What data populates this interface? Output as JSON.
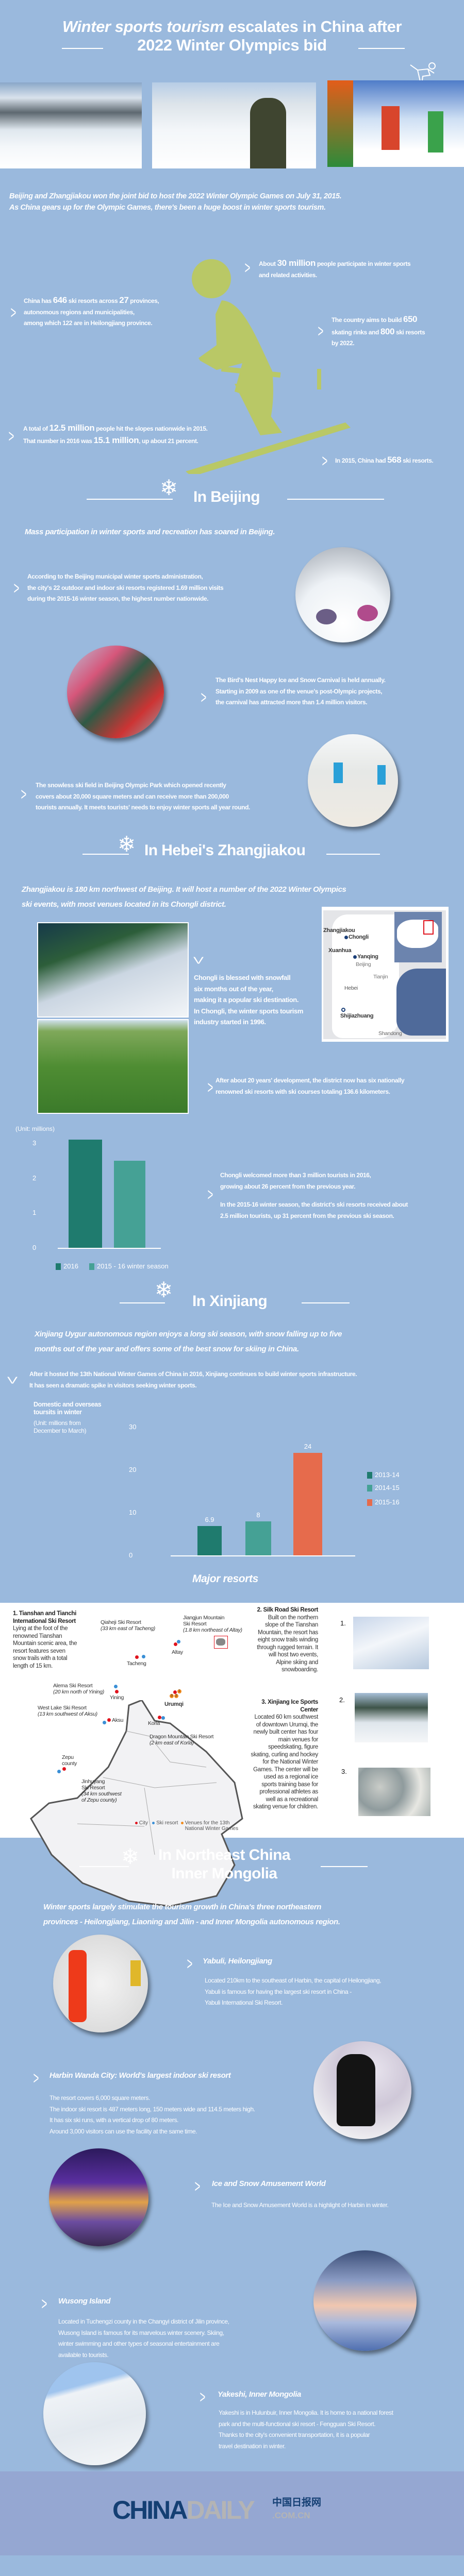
{
  "colors": {
    "background": "#9ab9dd",
    "skier": "#b9c866",
    "footer": "#95a7d2",
    "teal_dark": "#1f7b6e",
    "teal_light": "#45a195",
    "orange": "#e66b4c",
    "city_dot": "#e0141e",
    "resort_dot": "#3a8fd6",
    "venue_dot": "#f08a1c"
  },
  "header": {
    "title_italic": "Winter sports tourism",
    "title_rest": "escalates in China after",
    "title_line2": "2022 Winter Olympics bid",
    "icon": "skier-icon"
  },
  "intro": [
    "Beijing and Zhangjiakou won the joint bid to host the 2022 Winter Olympic Games  on July 31, 2015.",
    "As China gears up for the Olympic Games, there's been a huge boost in winter sports tourism."
  ],
  "stats": [
    {
      "lines": [
        [
          "About ",
          "30 million",
          " people participate in winter sports"
        ],
        [
          "and related activities.",
          "",
          ""
        ]
      ]
    },
    {
      "lines": [
        [
          "China has ",
          "646",
          " ski resorts across "
        ],
        [
          "27",
          " provinces,",
          ""
        ],
        [
          "autonomous regions and municipalities,",
          "",
          ""
        ],
        [
          "among which 122 are in Heilongjiang province.",
          "",
          ""
        ]
      ]
    },
    {
      "lines": [
        [
          "The country aims to build ",
          "650",
          ""
        ],
        [
          "skating rinks and ",
          "800",
          " ski resorts"
        ],
        [
          "by 2022.",
          "",
          ""
        ]
      ]
    },
    {
      "lines": [
        [
          "A total of ",
          "12.5 million",
          " people hit the slopes nationwide in 2015."
        ],
        [
          "That number in 2016 was ",
          "15.1 million",
          ", up about 21 percent."
        ]
      ]
    },
    {
      "lines": [
        [
          "In 2015, China had ",
          "568",
          " ski resorts."
        ]
      ]
    }
  ],
  "beijing": {
    "heading": "In Beijing",
    "lead": "Mass participation in winter sports and recreation has soared in Beijing.",
    "items": [
      [
        "According to the Beijing municipal winter sports administration,",
        "the city's 22 outdoor and indoor ski resorts registered 1.69 million visits",
        "during the 2015-16 winter season, the highest number nationwide."
      ],
      [
        "The Bird's Nest Happy Ice and Snow Carnival is held annually.",
        "Starting in 2009 as one of the venue's post-Olympic projects,",
        "the carnival has attracted more than 1.4 million visitors."
      ],
      [
        "The snowless ski field in Beijing Olympic Park which opened recently",
        "covers about 20,000 square meters and can receive more than 200,000",
        "tourists annually. It meets tourists' needs to enjoy winter sports all year round."
      ]
    ]
  },
  "hebei": {
    "heading": "In Hebei's Zhangjiakou",
    "lead": [
      "Zhangjiakou is 180 km northwest of Beijing. It will host a number of the 2022 Winter Olympics",
      "ski events, with most venues located in its Chongli district."
    ],
    "chongli": [
      "Chongli is blessed with snowfall",
      "six months out of the year,",
      "making it a popular ski destination.",
      "In Chongli, the winter sports tourism",
      "industry started in 1996."
    ],
    "map_labels": {
      "zhangjiakou": "Zhangjiakou",
      "chongli": "Chongli",
      "xuanhua": "Xuanhua",
      "yanqing": "Yanqing",
      "beijing": "Beijing",
      "tianjin": "Tianjin",
      "hebei": "Hebei",
      "shijiazhuang": "Shijiazhuang",
      "shandong": "Shandong"
    },
    "development": [
      "After about 20 years' development, the district now has six nationally",
      "renowned ski resorts with ski courses totaling 136.6 kilometers."
    ],
    "tourists": [
      "Chongli welcomed more than 3 million tourists in 2016,",
      "growing about 26 percent from the previous year.",
      "In the 2015-16 winter season, the district's ski resorts received about",
      "2.5 million tourists, up 31 percent from the previous ski season."
    ]
  },
  "xinjiang": {
    "heading": "In Xinjiang",
    "lead": [
      "Xinjiang Uygur autonomous region enjoys a long ski season, with snow falling up to five",
      "months out of the year and offers some of the best snow for skiing in China."
    ],
    "note": [
      "After it hosted the 13th National Winter Games of China in 2016, Xinjiang continues to build winter sports infrastructure.",
      "It has seen a dramatic spike in visitors seeking winter sports."
    ],
    "resorts_heading": "Major resorts",
    "resorts": [
      {
        "title": "1. Tianshan and Tianchi International Ski Resort",
        "text": "Lying at the foot of the renowned Tianshan Mountain scenic area, the resort features seven snow trails with a total length of 15 km."
      },
      {
        "title": "2. Silk Road Ski Resort",
        "text": "Built on the northern slope of the Tianshan Mountain, the resort has eight snow trails winding through rugged terrain. It will host two events, Alpine skiing and snowboarding."
      },
      {
        "title": "3. Xinjiang Ice Sports Center",
        "text": "Located 60 km southwest of downtown Urumqi, the newly built center has four main venues for speedskating, figure skating,  curling and hockey for the National Winter Games. The center will be used as a regional ice sports training base for professional athletes as well as a recreational skating venue for children."
      }
    ],
    "map": {
      "qiaheji": [
        "Qiaheji Ski Resort",
        "(33 km east of Tacheng)"
      ],
      "jiangjun": [
        "Jiangjun Mountain",
        "Ski Resort",
        "(1.8 km northeast of Altay)"
      ],
      "altay": "Altay",
      "tacheng": "Tacheng",
      "alema": [
        "Alema Ski Resort",
        "(20 km north of Yining)"
      ],
      "yining": "Yining",
      "westlake": [
        "West Lake Ski Resort",
        "(13 km southwest of Aksu)"
      ],
      "aksu": "Aksu",
      "urumqi": "Urumqi",
      "korla": "Korla",
      "dragon": [
        "Dragon Mountain Ski Resort",
        "(2 km east of Korla)"
      ],
      "zepu": [
        "Zepu",
        "county"
      ],
      "jinhuyang": [
        "Jinhuyang",
        "Ski Resort",
        "(34 km southwest",
        "of Zepu county)"
      ],
      "venue_nums": [
        "1",
        "2",
        "3"
      ],
      "legend": {
        "city": "City",
        "resort": "Ski resort",
        "venue": "Venues for the 13th National Winter Games"
      }
    },
    "photo_nums": [
      "1.",
      "2.",
      "3."
    ]
  },
  "northeast": {
    "heading": [
      "In Northeast China",
      "Inner Mongolia"
    ],
    "lead": [
      "Winter sports largely stimulate the tourism growth in China's three northeastern",
      "provinces - Heilongjiang, Liaoning and Jilin - and Inner Mongolia autonomous region."
    ],
    "items": [
      {
        "title": "Yabuli, Heilongjiang",
        "lines": [
          "Located 210km to the southeast of Harbin, the capital of Heilongjiang,",
          "Yabuli is famous for having the largest ski resort in China -",
          "Yabuli International Ski Resort."
        ]
      },
      {
        "title": "Harbin Wanda City: World's largest indoor ski resort",
        "lines": [
          "The resort covers 6,000 square meters.",
          "The indoor ski resort is 487 meters long, 150 meters wide and 114.5 meters high.",
          "It has six ski runs, with a vertical drop of 80 meters.",
          "Around 3,000 visitors can use the facility at the same time."
        ]
      },
      {
        "title": "Ice and Snow Amusement World",
        "lines": [
          "The Ice and Snow Amusement World is a highlight of Harbin in winter."
        ]
      },
      {
        "title": "Wusong Island",
        "lines": [
          "Located in Tuchengzi county in the Changyi district of Jilin province,",
          "Wusong Island is famous for its marvelous winter scenery. Skiing,",
          "winter swimming and other types of seasonal entertainment are",
          "available to tourists."
        ]
      },
      {
        "title": "Yakeshi, Inner Mongolia",
        "lines": [
          "Yakeshi is in Hulunbuir, Inner Mongolia. It is home to a national forest",
          "park and the multi-functional ski resort - Fengguan Ski Resort.",
          "Thanks to the city's convenient transportation, it is a popular",
          "travel destination in winter."
        ]
      }
    ]
  },
  "footer": {
    "logo_a": "CHINA",
    "logo_b": "DAILY",
    "logo_cn": "中国日报网",
    "logo_com": ".COM.CN"
  },
  "chart_data": [
    {
      "type": "bar",
      "ylabel": "(Unit: millions)",
      "ylim": [
        0,
        3
      ],
      "yticks": [
        "0",
        "1",
        "2",
        "3"
      ],
      "categories": [
        "2016",
        "2015 - 16 winter season"
      ],
      "values": [
        3.1,
        2.5
      ],
      "colors": [
        "#1f7b6e",
        "#45a195"
      ],
      "legend": "bottom",
      "grid": false
    },
    {
      "type": "bar",
      "title": "Domestic and overseas toursits in winter",
      "ylabel": "(Unit: millions from December to March)",
      "ylim": [
        0,
        30
      ],
      "yticks": [
        "0",
        "10",
        "20",
        "30"
      ],
      "categories": [
        "2013-14",
        "2014-15",
        "2015-16"
      ],
      "values": [
        6.9,
        8,
        24
      ],
      "data_labels": [
        "6.9",
        "8",
        "24"
      ],
      "colors": [
        "#1f7b6e",
        "#45a195",
        "#e66b4c"
      ],
      "legend": "right",
      "grid": false
    }
  ]
}
